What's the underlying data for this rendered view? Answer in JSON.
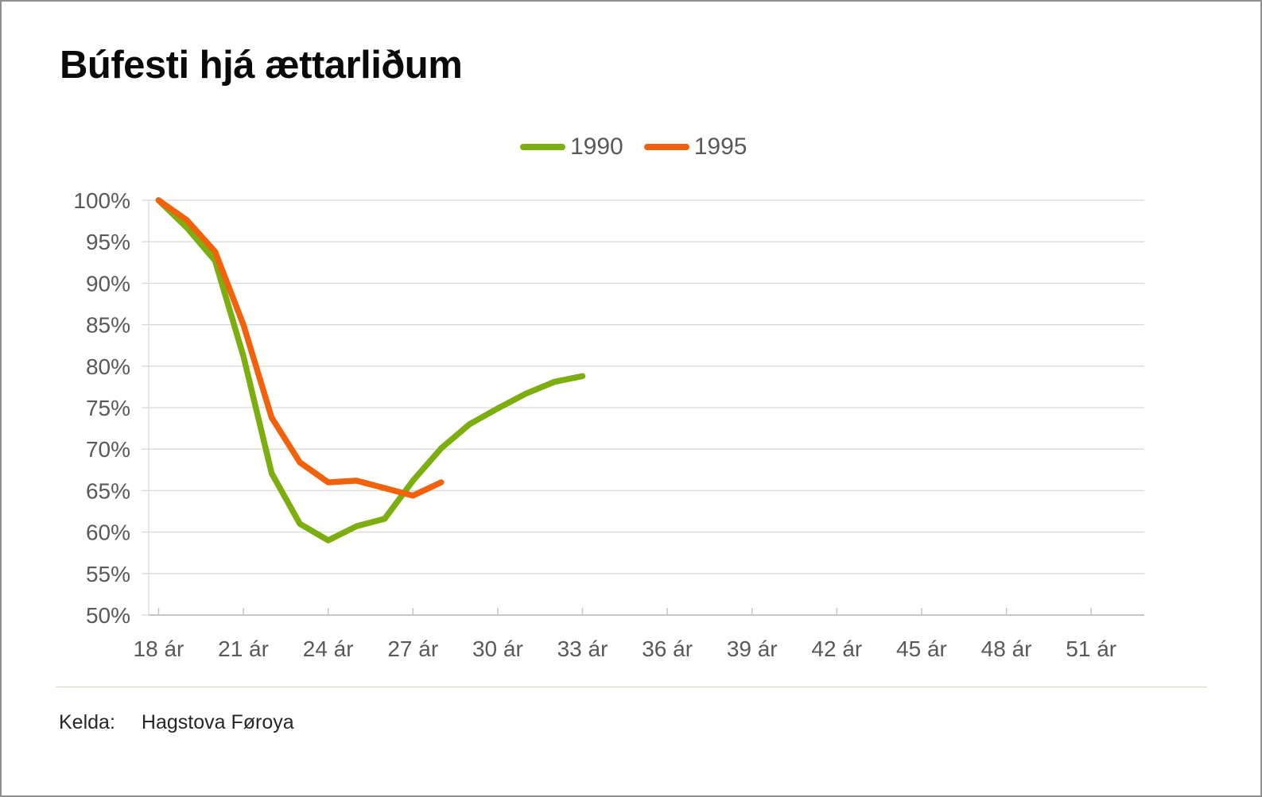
{
  "title": "Búfesti hjá ættarliðum",
  "source": {
    "label": "Kelda:",
    "value": "Hagstova Føroya"
  },
  "legend": {
    "items": [
      {
        "label": "1990",
        "color": "#7CAE10"
      },
      {
        "label": "1995",
        "color": "#F2610C"
      }
    ]
  },
  "colors": {
    "series_1990": "#7CAE10",
    "series_1995": "#F2610C",
    "axis_text": "#595959",
    "gridline": "#D9D9D9",
    "axis_line": "#C6C6C6",
    "title_text": "#0a0a0a",
    "source_text": "#262626",
    "footer_divider": "#D8D4C2",
    "card_border": "#8F8F8F"
  },
  "chart_data": {
    "type": "line",
    "title": "Búfesti hjá ættarliðum",
    "xlabel": "",
    "ylabel": "",
    "grid": "horizontal",
    "legend_position": "top-center",
    "xlim": [
      17.65,
      52.88
    ],
    "ylim": [
      50,
      100
    ],
    "yticks": [
      100,
      95,
      90,
      85,
      80,
      75,
      70,
      65,
      60,
      55,
      50
    ],
    "ytick_labels": [
      "100%",
      "95%",
      "90%",
      "85%",
      "80%",
      "75%",
      "70%",
      "65%",
      "60%",
      "55%",
      "50%"
    ],
    "xticks": [
      18,
      21,
      24,
      27,
      30,
      33,
      36,
      39,
      42,
      45,
      48,
      51
    ],
    "xtick_labels": [
      "18 ár",
      "21 ár",
      "24 ár",
      "27 ár",
      "30 ár",
      "33 ár",
      "36 ár",
      "39 ár",
      "42 ár",
      "45 ár",
      "48 ár",
      "51 ár"
    ],
    "series": [
      {
        "name": "1990",
        "color": "#7CAE10",
        "x": [
          18,
          19,
          20,
          21,
          22,
          23,
          24,
          25,
          26,
          27,
          28,
          29,
          30,
          31,
          32,
          33
        ],
        "values": [
          100,
          96.7,
          92.7,
          81.2,
          67.1,
          61.0,
          59.0,
          60.7,
          61.6,
          66.2,
          70.1,
          73.0,
          74.9,
          76.7,
          78.1,
          78.8
        ]
      },
      {
        "name": "1995",
        "color": "#F2610C",
        "x": [
          18,
          19,
          20,
          21,
          22,
          23,
          24,
          25,
          26,
          27,
          28
        ],
        "values": [
          100,
          97.6,
          93.8,
          85.0,
          73.8,
          68.4,
          66.0,
          66.2,
          65.3,
          64.4,
          66.0
        ]
      }
    ]
  }
}
